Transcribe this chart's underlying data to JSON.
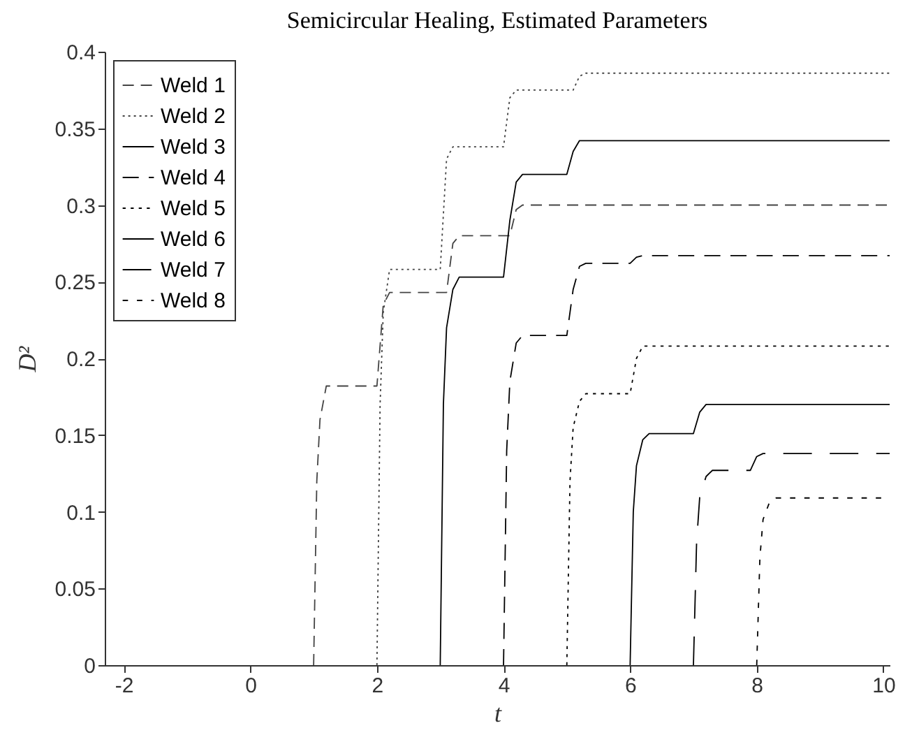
{
  "chart_data": {
    "type": "line",
    "title": "Semicircular Healing, Estimated Parameters",
    "xlabel": "t",
    "ylabel": "D²",
    "xlim": [
      -2.3,
      10.1
    ],
    "xticks": [
      -2,
      0,
      2,
      4,
      6,
      8,
      10
    ],
    "ylim": [
      0,
      0.4
    ],
    "yticks": [
      0,
      0.05,
      0.1,
      0.15,
      0.2,
      0.25,
      0.3,
      0.35,
      0.4
    ],
    "grid": false,
    "legend": "top left",
    "series": [
      {
        "name": "Weld 1",
        "color": "#444444",
        "line_style": "dashed",
        "x": [
          1,
          1.05,
          1.1,
          1.2,
          2,
          2.1,
          2.2,
          3.1,
          3.2,
          3.3,
          4.1,
          4.2,
          4.3,
          10.1
        ],
        "values": [
          0,
          0.12,
          0.16,
          0.182,
          0.182,
          0.235,
          0.243,
          0.243,
          0.275,
          0.28,
          0.28,
          0.297,
          0.3,
          0.3
        ]
      },
      {
        "name": "Weld 2",
        "color": "#444444",
        "line_style": "dotted",
        "x": [
          2,
          2.05,
          2.1,
          2.2,
          3,
          3.1,
          3.2,
          4,
          4.1,
          4.2,
          5.1,
          5.2,
          5.3,
          10.1
        ],
        "values": [
          0,
          0.17,
          0.23,
          0.258,
          0.258,
          0.33,
          0.338,
          0.338,
          0.37,
          0.375,
          0.375,
          0.384,
          0.386,
          0.386
        ]
      },
      {
        "name": "Weld 3",
        "color": "#000000",
        "line_style": "solid",
        "x": [
          3,
          3.05,
          3.1,
          3.2,
          3.3,
          4,
          4.1,
          4.2,
          4.3,
          5,
          5.1,
          5.2,
          10.1
        ],
        "values": [
          0,
          0.17,
          0.22,
          0.245,
          0.253,
          0.253,
          0.29,
          0.315,
          0.32,
          0.32,
          0.335,
          0.342,
          0.342
        ]
      },
      {
        "name": "Weld 4",
        "color": "#000000",
        "line_style": "dashed",
        "x": [
          4,
          4.05,
          4.1,
          4.2,
          4.3,
          5,
          5.1,
          5.2,
          5.3,
          6,
          6.1,
          6.2,
          10.1
        ],
        "values": [
          0,
          0.14,
          0.185,
          0.21,
          0.215,
          0.215,
          0.245,
          0.26,
          0.262,
          0.262,
          0.266,
          0.267,
          0.267
        ]
      },
      {
        "name": "Weld 5",
        "color": "#000000",
        "line_style": "dotted",
        "x": [
          5,
          5.05,
          5.1,
          5.2,
          5.3,
          6,
          6.1,
          6.2,
          10.1
        ],
        "values": [
          0,
          0.12,
          0.155,
          0.172,
          0.177,
          0.177,
          0.2,
          0.208,
          0.208
        ]
      },
      {
        "name": "Weld 6",
        "color": "#000000",
        "line_style": "solid",
        "x": [
          6,
          6.05,
          6.1,
          6.2,
          6.3,
          7,
          7.1,
          7.2,
          10.1
        ],
        "values": [
          0,
          0.1,
          0.13,
          0.147,
          0.151,
          0.151,
          0.165,
          0.17,
          0.17
        ]
      },
      {
        "name": "Weld 7",
        "color": "#000000",
        "line_style": "dashed",
        "x": [
          7,
          7.05,
          7.1,
          7.2,
          7.3,
          7.9,
          8,
          8.1,
          10.1
        ],
        "values": [
          0,
          0.08,
          0.11,
          0.123,
          0.127,
          0.127,
          0.136,
          0.138,
          0.138
        ]
      },
      {
        "name": "Weld 8",
        "color": "#000000",
        "line_style": "dotted",
        "x": [
          8,
          8.05,
          8.1,
          8.2,
          8.3,
          10.1
        ],
        "values": [
          0,
          0.07,
          0.095,
          0.106,
          0.109,
          0.109
        ]
      }
    ]
  }
}
